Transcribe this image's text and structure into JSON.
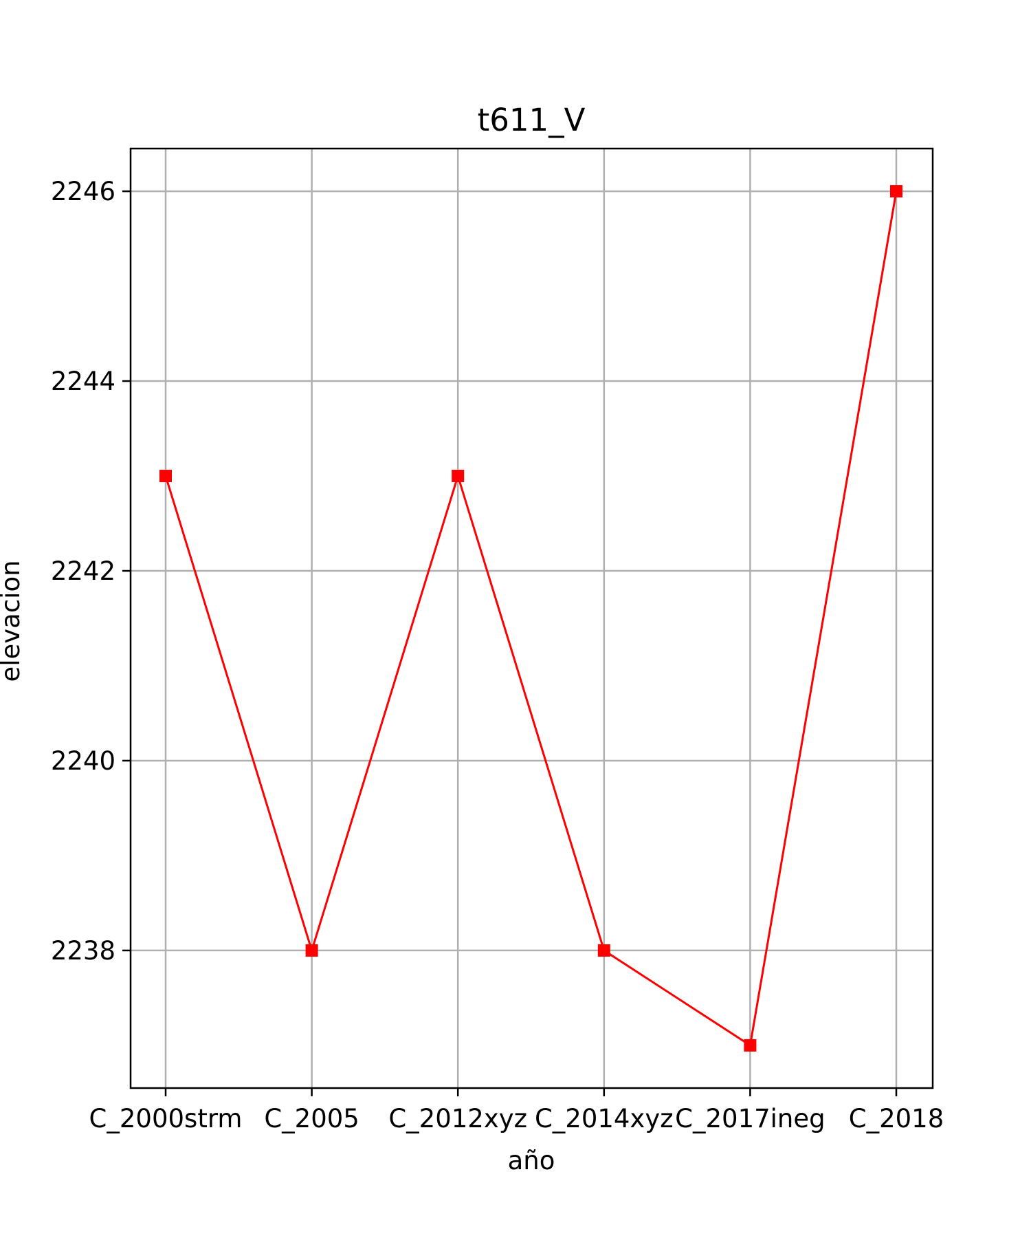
{
  "chart_data": {
    "type": "line",
    "title": "t611_V",
    "xlabel": "año",
    "ylabel": "elevacion",
    "categories": [
      "C_2000strm",
      "C_2005",
      "C_2012xyz",
      "C_2014xyz",
      "C_2017ineg",
      "C_2018"
    ],
    "series": [
      {
        "name": "elevacion",
        "values": [
          2243,
          2238,
          2243,
          2238,
          2237,
          2246
        ],
        "color": "#ff0000",
        "marker": "square"
      }
    ],
    "ylim": [
      2236.55,
      2246.45
    ],
    "yticks": [
      2238,
      2240,
      2242,
      2244,
      2246
    ],
    "grid": true,
    "colors": {
      "grid": "#b0b0b0",
      "axes": "#000000",
      "line": "#ff0000"
    }
  }
}
